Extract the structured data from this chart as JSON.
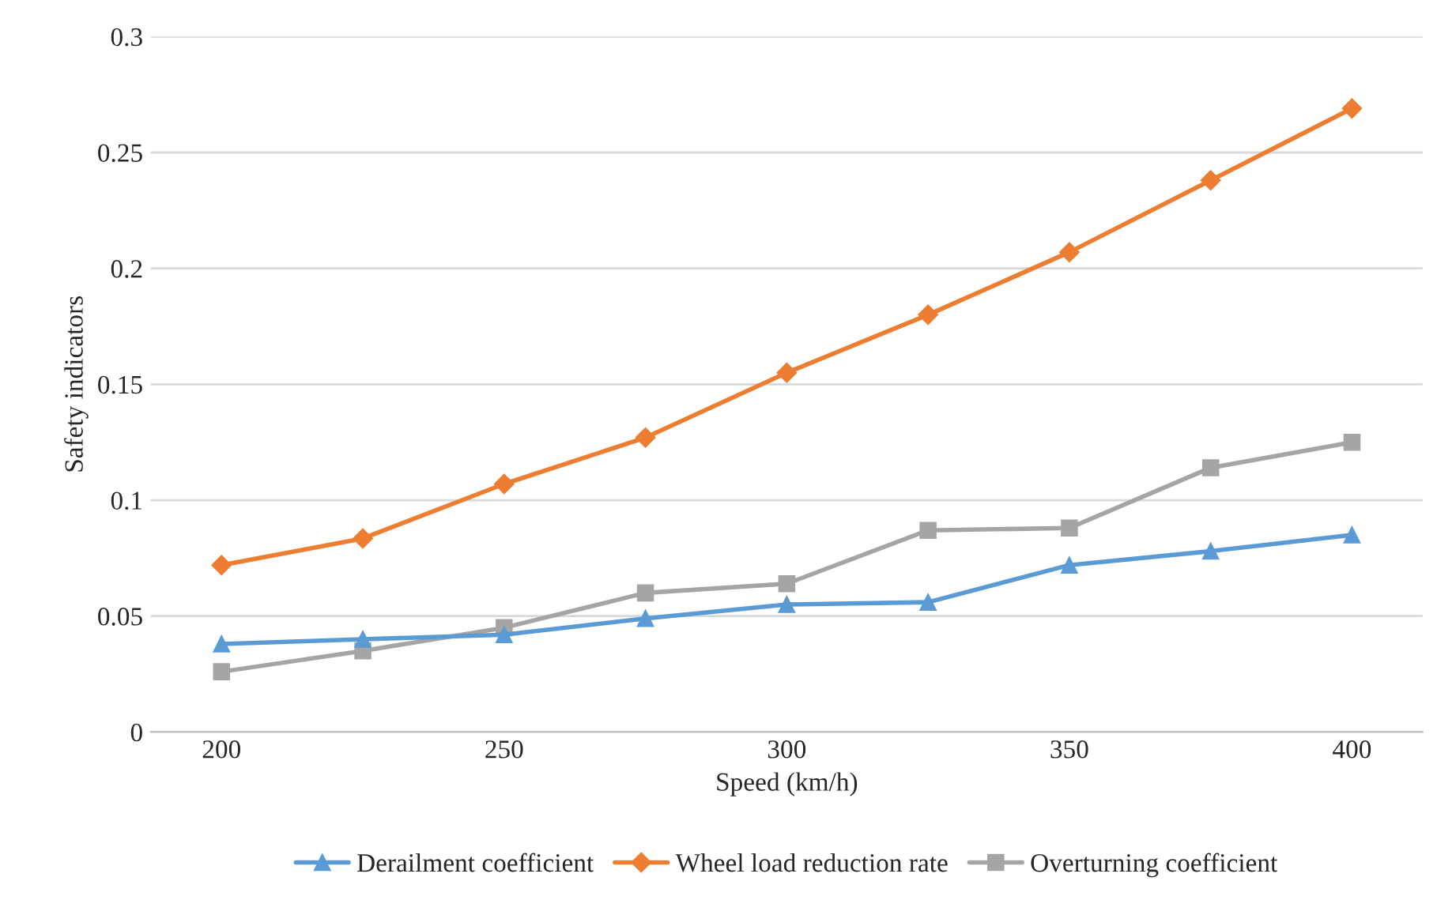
{
  "chart_data": {
    "type": "line",
    "xlabel": "Speed (km/h)",
    "ylabel": "Safety indicators",
    "x": [
      200,
      225,
      250,
      275,
      300,
      325,
      350,
      375,
      400
    ],
    "xlim": [
      187.5,
      412.5
    ],
    "xticks": [
      200,
      250,
      300,
      350,
      400
    ],
    "ylim": [
      0,
      0.3
    ],
    "yticks": [
      0,
      0.05,
      0.1,
      0.15,
      0.2,
      0.25,
      0.3
    ],
    "grid": "y",
    "legend": "bottom",
    "series": [
      {
        "name": "Derailment coefficient",
        "color": "#5b9bd5",
        "marker": "triangle",
        "values": [
          0.038,
          0.04,
          0.042,
          0.049,
          0.055,
          0.056,
          0.072,
          0.078,
          0.085
        ]
      },
      {
        "name": "Wheel load reduction rate",
        "color": "#ed7d31",
        "marker": "diamond",
        "values": [
          0.072,
          0.0835,
          0.107,
          0.127,
          0.155,
          0.18,
          0.207,
          0.238,
          0.269
        ]
      },
      {
        "name": "Overturning coefficient",
        "color": "#a5a5a5",
        "marker": "square",
        "values": [
          0.026,
          0.035,
          0.045,
          0.06,
          0.064,
          0.087,
          0.088,
          0.114,
          0.125
        ]
      }
    ]
  }
}
